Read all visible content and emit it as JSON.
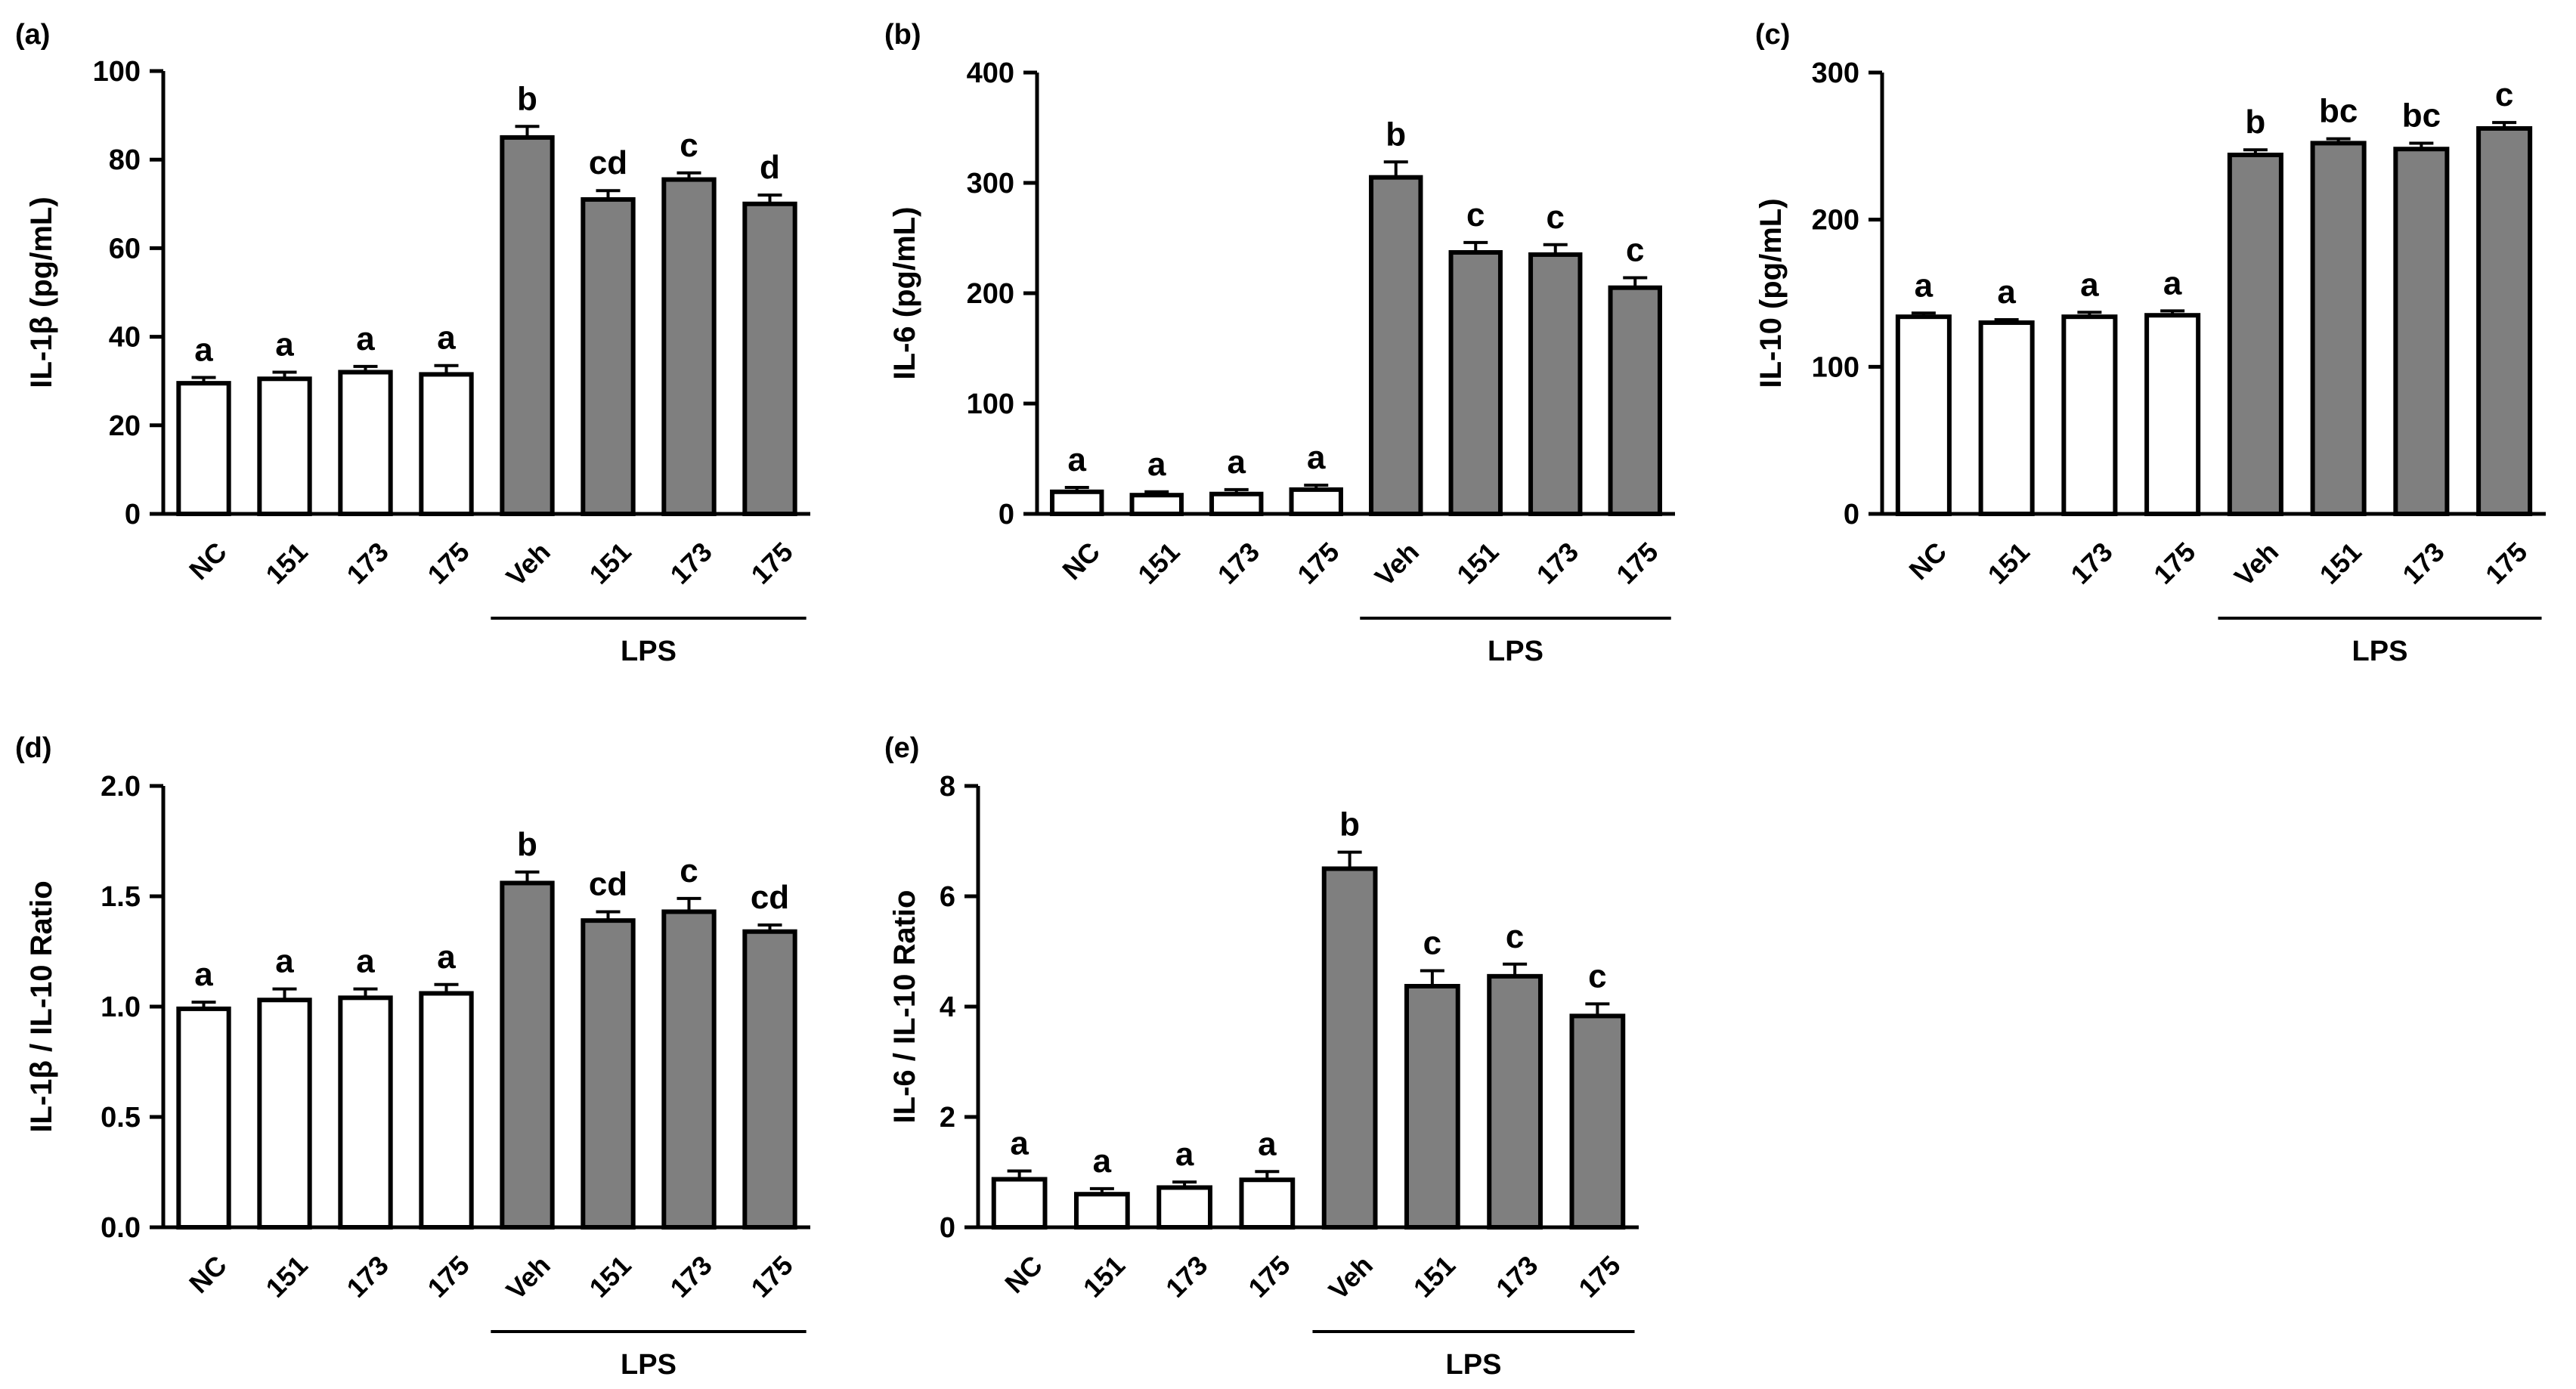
{
  "colors": {
    "normal": "#ffffff",
    "lps": "#7f7f7f",
    "stroke": "#000000"
  },
  "chart_data": [
    {
      "type": "bar",
      "panel": "(a)",
      "ylabel": "IL-1β (pg/mL)",
      "ylim": [
        0,
        100
      ],
      "yticks": [
        "0",
        "20",
        "40",
        "60",
        "80",
        "100"
      ],
      "categories": [
        "NC",
        "151",
        "173",
        "175",
        "Veh",
        "151",
        "173",
        "175"
      ],
      "values": [
        29.5,
        30.5,
        32,
        31.5,
        85,
        71,
        75.5,
        70
      ],
      "errors": [
        1.3,
        1.5,
        1.3,
        2,
        2.5,
        2,
        1.5,
        2
      ],
      "letters": [
        "a",
        "a",
        "a",
        "a",
        "b",
        "cd",
        "c",
        "d"
      ],
      "group_label": "LPS"
    },
    {
      "type": "bar",
      "panel": "(b)",
      "ylabel": "IL-6 (pg/mL)",
      "ylim": [
        0,
        400
      ],
      "yticks": [
        "0",
        "100",
        "200",
        "300",
        "400"
      ],
      "categories": [
        "NC",
        "151",
        "173",
        "175",
        "Veh",
        "151",
        "173",
        "175"
      ],
      "values": [
        20,
        17,
        18,
        22,
        305,
        237,
        235,
        205
      ],
      "errors": [
        4,
        3,
        4,
        4,
        14,
        9,
        9,
        9
      ],
      "letters": [
        "a",
        "a",
        "a",
        "a",
        "b",
        "c",
        "c",
        "c"
      ],
      "group_label": "LPS"
    },
    {
      "type": "bar",
      "panel": "(c)",
      "ylabel": "IL-10 (pg/mL)",
      "ylim": [
        0,
        300
      ],
      "yticks": [
        "0",
        "100",
        "200",
        "300"
      ],
      "categories": [
        "NC",
        "151",
        "173",
        "175",
        "Veh",
        "151",
        "173",
        "175"
      ],
      "values": [
        134,
        130,
        134,
        135,
        244,
        252,
        248,
        262
      ],
      "errors": [
        2.5,
        2,
        3,
        3,
        3.5,
        3,
        4,
        4
      ],
      "letters": [
        "a",
        "a",
        "a",
        "a",
        "b",
        "bc",
        "bc",
        "c"
      ],
      "group_label": "LPS"
    },
    {
      "type": "bar",
      "panel": "(d)",
      "ylabel": "IL-1β / IL-10 Ratio",
      "ylim": [
        0,
        2
      ],
      "yticks": [
        "0.0",
        "0.5",
        "1.0",
        "1.5",
        "2.0"
      ],
      "categories": [
        "NC",
        "151",
        "173",
        "175",
        "Veh",
        "151",
        "173",
        "175"
      ],
      "values": [
        0.99,
        1.03,
        1.04,
        1.06,
        1.56,
        1.39,
        1.43,
        1.34
      ],
      "errors": [
        0.03,
        0.05,
        0.04,
        0.04,
        0.05,
        0.04,
        0.06,
        0.03
      ],
      "letters": [
        "a",
        "a",
        "a",
        "a",
        "b",
        "cd",
        "c",
        "cd"
      ],
      "group_label": "LPS"
    },
    {
      "type": "bar",
      "panel": "(e)",
      "ylabel": "IL-6 / IL-10 Ratio",
      "ylim": [
        0,
        8
      ],
      "yticks": [
        "0",
        "2",
        "4",
        "6",
        "8"
      ],
      "categories": [
        "NC",
        "151",
        "173",
        "175",
        "Veh",
        "151",
        "173",
        "175"
      ],
      "values": [
        0.87,
        0.6,
        0.72,
        0.86,
        6.5,
        4.37,
        4.55,
        3.83
      ],
      "errors": [
        0.15,
        0.1,
        0.1,
        0.15,
        0.3,
        0.28,
        0.22,
        0.22
      ],
      "letters": [
        "a",
        "a",
        "a",
        "a",
        "b",
        "c",
        "c",
        "c"
      ],
      "group_label": "LPS"
    }
  ]
}
